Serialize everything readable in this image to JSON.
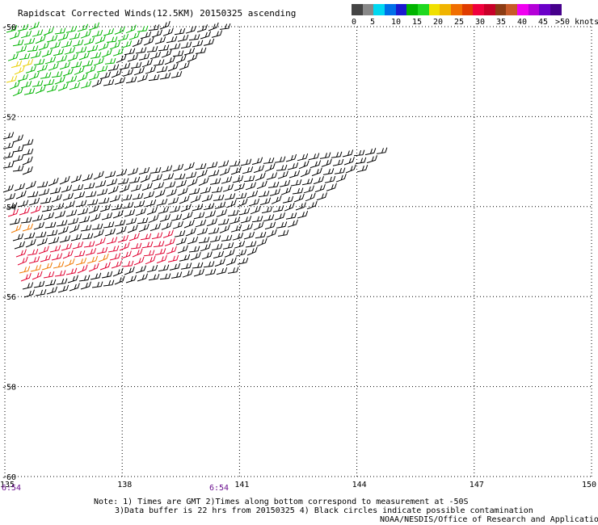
{
  "title": "Rapidscat Corrected Winds(12.5KM) 20150325 ascending",
  "colorbar": {
    "swatches": [
      "#444444",
      "#888888",
      "#00d8f0",
      "#0070e8",
      "#1a1ad0",
      "#00b400",
      "#1fd81f",
      "#f0e000",
      "#f0b400",
      "#f06e00",
      "#e03c00",
      "#f0003c",
      "#c80028",
      "#8c3c14",
      "#c85a28",
      "#f000f0",
      "#b400d8",
      "#6a00c8",
      "#46008c"
    ],
    "labels": [
      "0",
      "5",
      "10",
      "15",
      "20",
      "25",
      "30",
      "35",
      "40",
      "45",
      ">50 knots"
    ]
  },
  "map": {
    "lon_ticks": [
      "135",
      "138",
      "141",
      "144",
      "147",
      "150"
    ],
    "lat_ticks": [
      "-50",
      "-52",
      "-54",
      "-56",
      "-58",
      "-60"
    ],
    "lon_range": [
      135,
      150
    ],
    "lat_range": [
      -50,
      -60
    ]
  },
  "times": [
    "6:54",
    "6:54"
  ],
  "notes": {
    "line1": "Note: 1) Times are GMT 2)Times along bottom correspond to measurement at -50S",
    "line2": "3)Data buffer is 22 hrs from 20150325 4) Black circles indicate possible contamination",
    "credit": "NOAA/NESDIS/Office of Research and Applications"
  },
  "barb_colors": {
    "calm": "#0000c8",
    "light": "#00b400",
    "moderate": "#e8d000",
    "fresh": "#f07800",
    "strong": "#e00030",
    "default": "#000000"
  }
}
